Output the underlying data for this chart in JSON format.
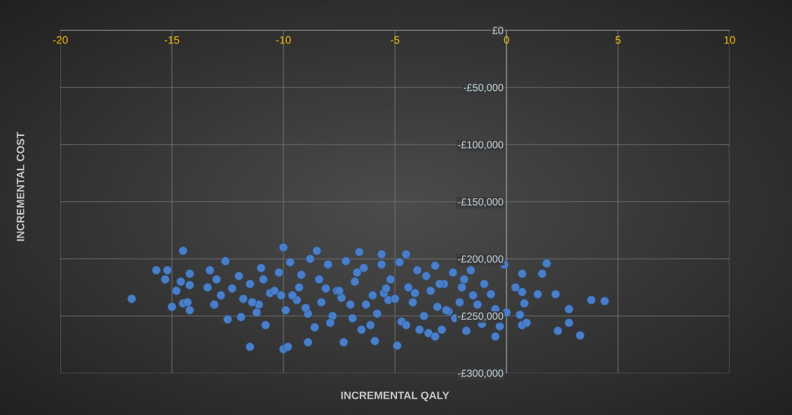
{
  "chart_data": {
    "type": "scatter",
    "xlabel": "INCREMENTAL QALY",
    "ylabel": "INCREMENTAL COST",
    "xlim": [
      -20,
      10
    ],
    "xticks": [
      -20,
      -15,
      -10,
      -5,
      0,
      5,
      10
    ],
    "ylim": [
      -300000,
      0
    ],
    "yticks": [
      {
        "value": 0,
        "label": "£0"
      },
      {
        "value": -50000,
        "label": "-£50,000"
      },
      {
        "value": -100000,
        "label": "-£100,000"
      },
      {
        "value": -150000,
        "label": "-£150,000"
      },
      {
        "value": -200000,
        "label": "-£200,000"
      },
      {
        "value": -250000,
        "label": "-£250,000"
      },
      {
        "value": -300000,
        "label": "-£300,000"
      }
    ],
    "grid": true,
    "marker": "circle",
    "series": [
      {
        "color": "#4a7ec9",
        "x": [
          -16.8,
          -15.7,
          -15.2,
          -15.3,
          -15.0,
          -14.5,
          -14.8,
          -14.5,
          -14.6,
          -14.2,
          -14.2,
          -14.2,
          -14.3,
          -11.5,
          -10.0,
          -9.8,
          -8.9,
          -7.3,
          -5.9,
          -4.9,
          -10.0,
          -8.5,
          -6.6,
          -4.5,
          -5.6,
          -0.1,
          1.8,
          1.6,
          0.7,
          1.4,
          2.2,
          2.8,
          3.8,
          4.4,
          2.8,
          2.3,
          3.3,
          0.7,
          0.9,
          -0.5,
          -1.1,
          0.4,
          0.7,
          0.8,
          -0.5,
          0.0,
          0.6,
          -0.3,
          -0.7,
          -1.0,
          -3.5,
          -3.2,
          -2.9,
          -13.4,
          -13.3,
          -13.1,
          -12.5,
          -11.9,
          -11.2,
          -12.6,
          -12.0,
          -11.5,
          -11.0,
          -10.6,
          -10.2,
          -9.7,
          -9.3,
          -8.8,
          -8.4,
          -8.0,
          -7.6,
          -7.2,
          -6.8,
          -6.4,
          -6.0,
          -5.6,
          -5.2,
          -4.8,
          -4.4,
          -4.0,
          -3.6,
          -3.2,
          -2.8,
          -2.4,
          -2.0,
          -1.6,
          -11.8,
          -11.1,
          -10.4,
          -9.9,
          -9.4,
          -8.9,
          -8.3,
          -7.8,
          -7.4,
          -6.9,
          -6.3,
          -5.8,
          -5.3,
          -4.7,
          -4.2,
          -3.7,
          -3.1,
          -2.6,
          -2.1,
          -1.5,
          -12.3,
          -10.8,
          -9.6,
          -8.6,
          -7.5,
          -6.5,
          -5.5,
          -4.5,
          -3.4,
          -2.3,
          -1.3,
          -11.4,
          -10.1,
          -9.0,
          -7.9,
          -7.0,
          -6.1,
          -5.0,
          -3.9,
          -2.7,
          -1.8,
          -13.0,
          -12.8,
          -10.9,
          -9.2,
          -8.1,
          -6.7,
          -5.4,
          -4.1,
          -3.0,
          -1.9
        ],
        "values": [
          -235000,
          -210000,
          -210000,
          -218000,
          -242000,
          -193000,
          -228000,
          -239000,
          -220000,
          -213000,
          -223000,
          -245000,
          -238000,
          -277000,
          -279000,
          -277000,
          -273000,
          -273000,
          -272000,
          -276000,
          -190000,
          -193000,
          -194000,
          -196000,
          -196000,
          -205000,
          -204000,
          -213000,
          -213000,
          -231000,
          -231000,
          -244000,
          -236000,
          -237000,
          -256000,
          -263000,
          -267000,
          -258000,
          -256000,
          -268000,
          -257000,
          -225000,
          -229000,
          -239000,
          -244000,
          -247000,
          -249000,
          -259000,
          -231000,
          -222000,
          -265000,
          -268000,
          -262000,
          -225000,
          -210000,
          -240000,
          -253000,
          -251000,
          -247000,
          -202000,
          -215000,
          -222000,
          -208000,
          -230000,
          -212000,
          -203000,
          -225000,
          -200000,
          -218000,
          -205000,
          -228000,
          -202000,
          -220000,
          -208000,
          -232000,
          -205000,
          -218000,
          -203000,
          -225000,
          -210000,
          -215000,
          -206000,
          -222000,
          -212000,
          -225000,
          -210000,
          -235000,
          -240000,
          -228000,
          -245000,
          -236000,
          -248000,
          -238000,
          -250000,
          -234000,
          -252000,
          -240000,
          -248000,
          -236000,
          -255000,
          -238000,
          -250000,
          -242000,
          -246000,
          -238000,
          -232000,
          -226000,
          -258000,
          -232000,
          -260000,
          -228000,
          -262000,
          -230000,
          -258000,
          -228000,
          -252000,
          -240000,
          -238000,
          -232000,
          -243000,
          -256000,
          -240000,
          -258000,
          -235000,
          -262000,
          -245000,
          -263000,
          -218000,
          -232000,
          -218000,
          -214000,
          -226000,
          -212000,
          -226000,
          -230000,
          -222000,
          -218000
        ]
      }
    ]
  }
}
